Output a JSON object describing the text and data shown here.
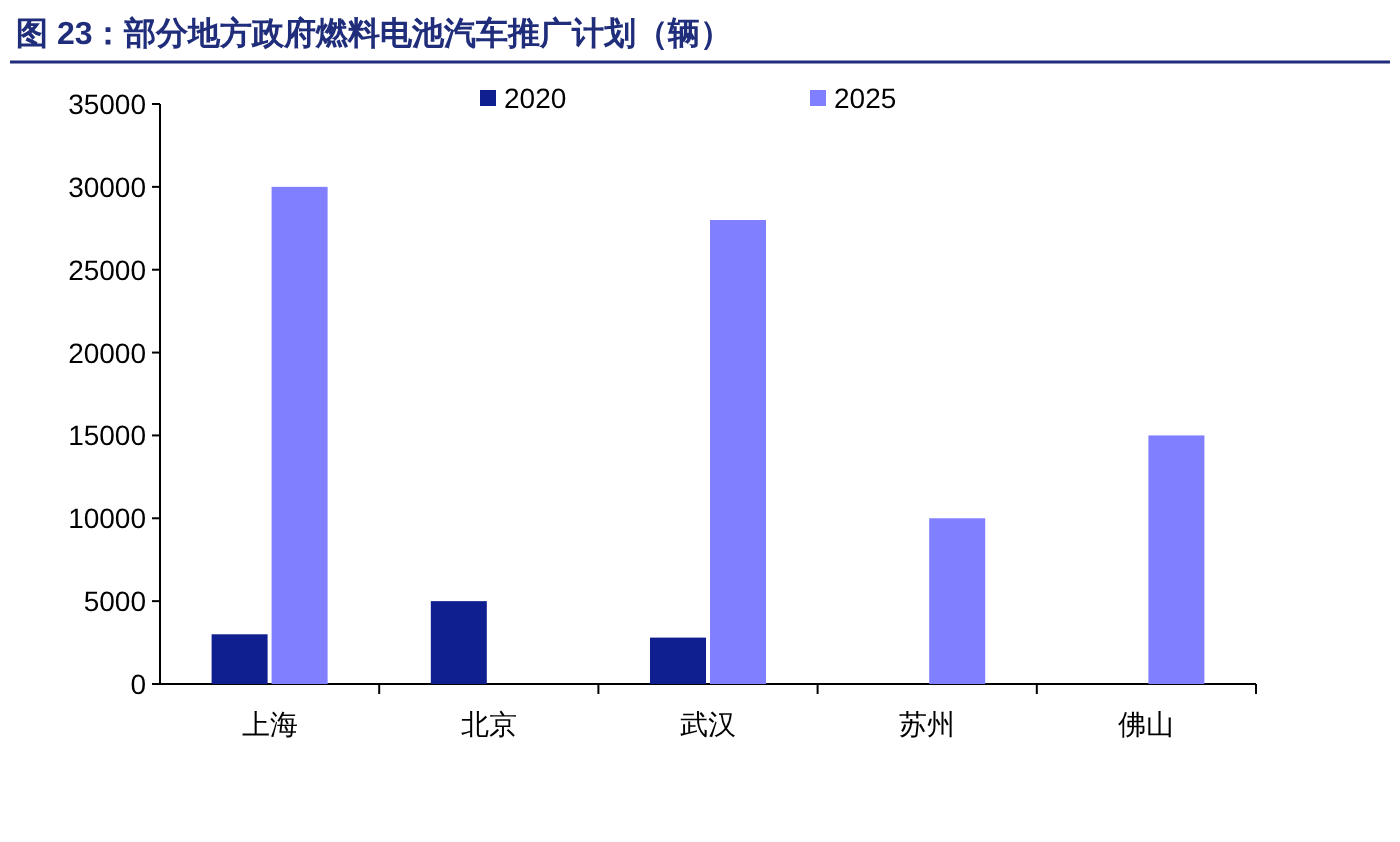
{
  "chart_data": {
    "type": "bar",
    "title": "图 23：部分地方政府燃料电池汽车推广计划（辆）",
    "categories": [
      "上海",
      "北京",
      "武汉",
      "苏州",
      "佛山"
    ],
    "series": [
      {
        "name": "2020",
        "color": "#0f1f8f",
        "values": [
          3000,
          5000,
          2800,
          null,
          null
        ]
      },
      {
        "name": "2025",
        "color": "#7f7fff",
        "values": [
          30000,
          null,
          28000,
          10000,
          15000
        ]
      }
    ],
    "ylim": [
      0,
      35000
    ],
    "yticks": [
      0,
      5000,
      10000,
      15000,
      20000,
      25000,
      30000,
      35000
    ],
    "grid": false,
    "legend": "top"
  }
}
